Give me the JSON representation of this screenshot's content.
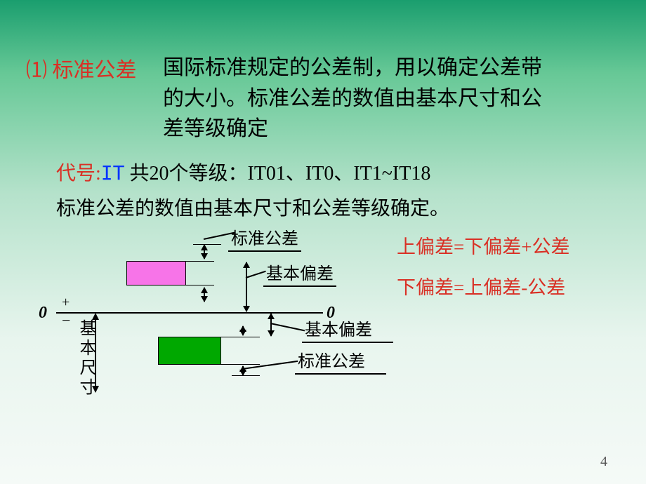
{
  "heading": "⑴ 标准公差",
  "description": "国际标准规定的公差制，用以确定公差带的大小。标准公差的数值由基本尺寸和公差等级确定",
  "codeLine": {
    "label": "代号:",
    "it": "IT",
    "rest": "  共20个等级：IT01、IT0、IT1~IT18"
  },
  "subline": "标准公差的数值由基本尺寸和公差等级确定。",
  "formulas": {
    "f1": "上偏差=下偏差+公差",
    "f2": "下偏差=上偏差-公差"
  },
  "diagram": {
    "zero": "0",
    "plus": "+",
    "minus": "−",
    "basicDim": "基本尺寸",
    "stdTol": "标准公差",
    "basicDev": "基本偏差",
    "colors": {
      "pink": "#f774e8",
      "green": "#00a800"
    }
  },
  "pageNumber": "4"
}
